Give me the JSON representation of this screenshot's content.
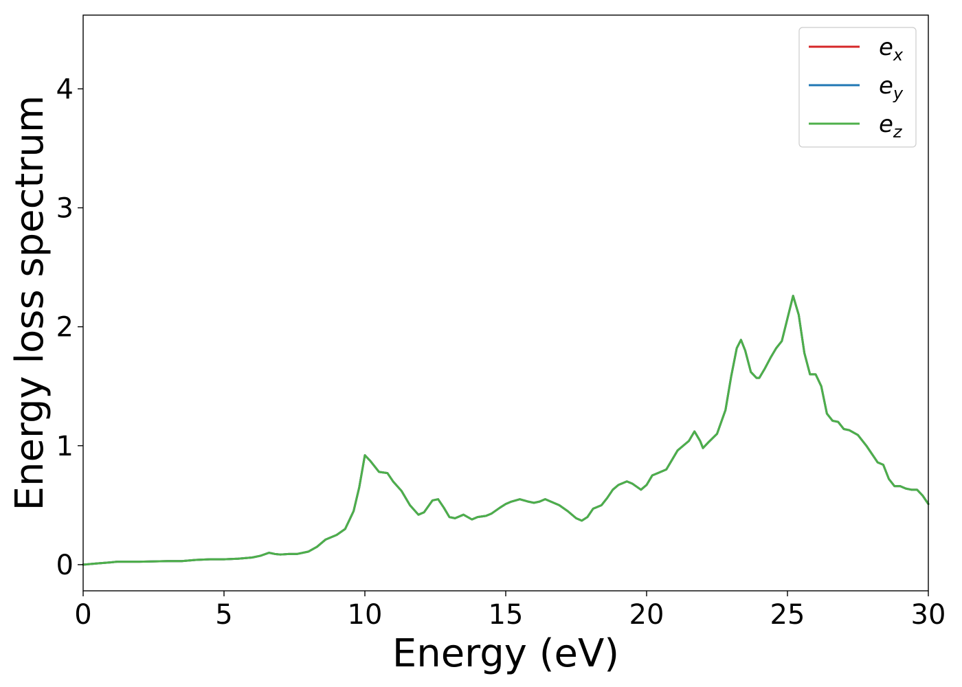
{
  "chart_data": {
    "type": "line",
    "xlabel": "Energy (eV)",
    "ylabel": "Energy loss spectrum",
    "xlim": [
      0,
      30
    ],
    "ylim": [
      -0.22,
      4.62
    ],
    "xticks": [
      0,
      5,
      10,
      15,
      20,
      25,
      30
    ],
    "yticks": [
      0,
      1,
      2,
      3,
      4
    ],
    "grid": false,
    "legend_position": "top-right",
    "series": [
      {
        "name": "e",
        "subscript": "x",
        "color": "#d62728"
      },
      {
        "name": "e",
        "subscript": "y",
        "color": "#1f77b4"
      },
      {
        "name": "e",
        "subscript": "z",
        "color": "#4daf4a"
      }
    ],
    "x": [
      0.0,
      0.5,
      1.0,
      1.2,
      2.0,
      3.0,
      3.5,
      4.0,
      4.5,
      5.0,
      5.5,
      6.0,
      6.3,
      6.6,
      6.8,
      7.0,
      7.3,
      7.6,
      8.0,
      8.3,
      8.6,
      9.0,
      9.3,
      9.6,
      9.8,
      10.0,
      10.2,
      10.5,
      10.8,
      11.0,
      11.3,
      11.6,
      11.9,
      12.1,
      12.4,
      12.6,
      12.8,
      13.0,
      13.2,
      13.5,
      13.8,
      14.0,
      14.3,
      14.5,
      14.8,
      15.0,
      15.2,
      15.5,
      15.8,
      16.0,
      16.2,
      16.4,
      16.6,
      16.9,
      17.2,
      17.5,
      17.7,
      17.9,
      18.1,
      18.4,
      18.6,
      18.8,
      19.0,
      19.3,
      19.5,
      19.8,
      20.0,
      20.2,
      20.4,
      20.7,
      20.9,
      21.1,
      21.3,
      21.5,
      21.7,
      21.9,
      22.0,
      22.2,
      22.5,
      22.8,
      23.0,
      23.2,
      23.35,
      23.5,
      23.7,
      23.9,
      24.0,
      24.2,
      24.4,
      24.6,
      24.8,
      25.0,
      25.2,
      25.4,
      25.6,
      25.8,
      26.0,
      26.2,
      26.4,
      26.6,
      26.8,
      27.0,
      27.2,
      27.5,
      27.8,
      28.0,
      28.2,
      28.4,
      28.6,
      28.8,
      29.0,
      29.2,
      29.4,
      29.6,
      29.8,
      30.0
    ],
    "y": [
      0.0,
      0.01,
      0.02,
      0.025,
      0.025,
      0.03,
      0.03,
      0.04,
      0.045,
      0.045,
      0.05,
      0.06,
      0.075,
      0.1,
      0.09,
      0.085,
      0.09,
      0.09,
      0.11,
      0.15,
      0.21,
      0.25,
      0.3,
      0.45,
      0.65,
      0.92,
      0.87,
      0.78,
      0.77,
      0.7,
      0.62,
      0.5,
      0.42,
      0.44,
      0.54,
      0.55,
      0.48,
      0.4,
      0.39,
      0.42,
      0.38,
      0.4,
      0.41,
      0.43,
      0.48,
      0.51,
      0.53,
      0.55,
      0.53,
      0.52,
      0.53,
      0.55,
      0.53,
      0.5,
      0.45,
      0.39,
      0.37,
      0.4,
      0.47,
      0.5,
      0.56,
      0.63,
      0.67,
      0.7,
      0.68,
      0.63,
      0.67,
      0.75,
      0.77,
      0.8,
      0.88,
      0.96,
      1.0,
      1.04,
      1.12,
      1.04,
      0.98,
      1.03,
      1.1,
      1.3,
      1.58,
      1.82,
      1.89,
      1.8,
      1.62,
      1.57,
      1.57,
      1.65,
      1.74,
      1.82,
      1.88,
      2.07,
      2.26,
      2.1,
      1.78,
      1.6,
      1.6,
      1.5,
      1.27,
      1.21,
      1.2,
      1.14,
      1.13,
      1.09,
      1.0,
      0.93,
      0.86,
      0.84,
      0.72,
      0.66,
      0.66,
      0.64,
      0.63,
      0.63,
      0.58,
      0.51
    ]
  }
}
